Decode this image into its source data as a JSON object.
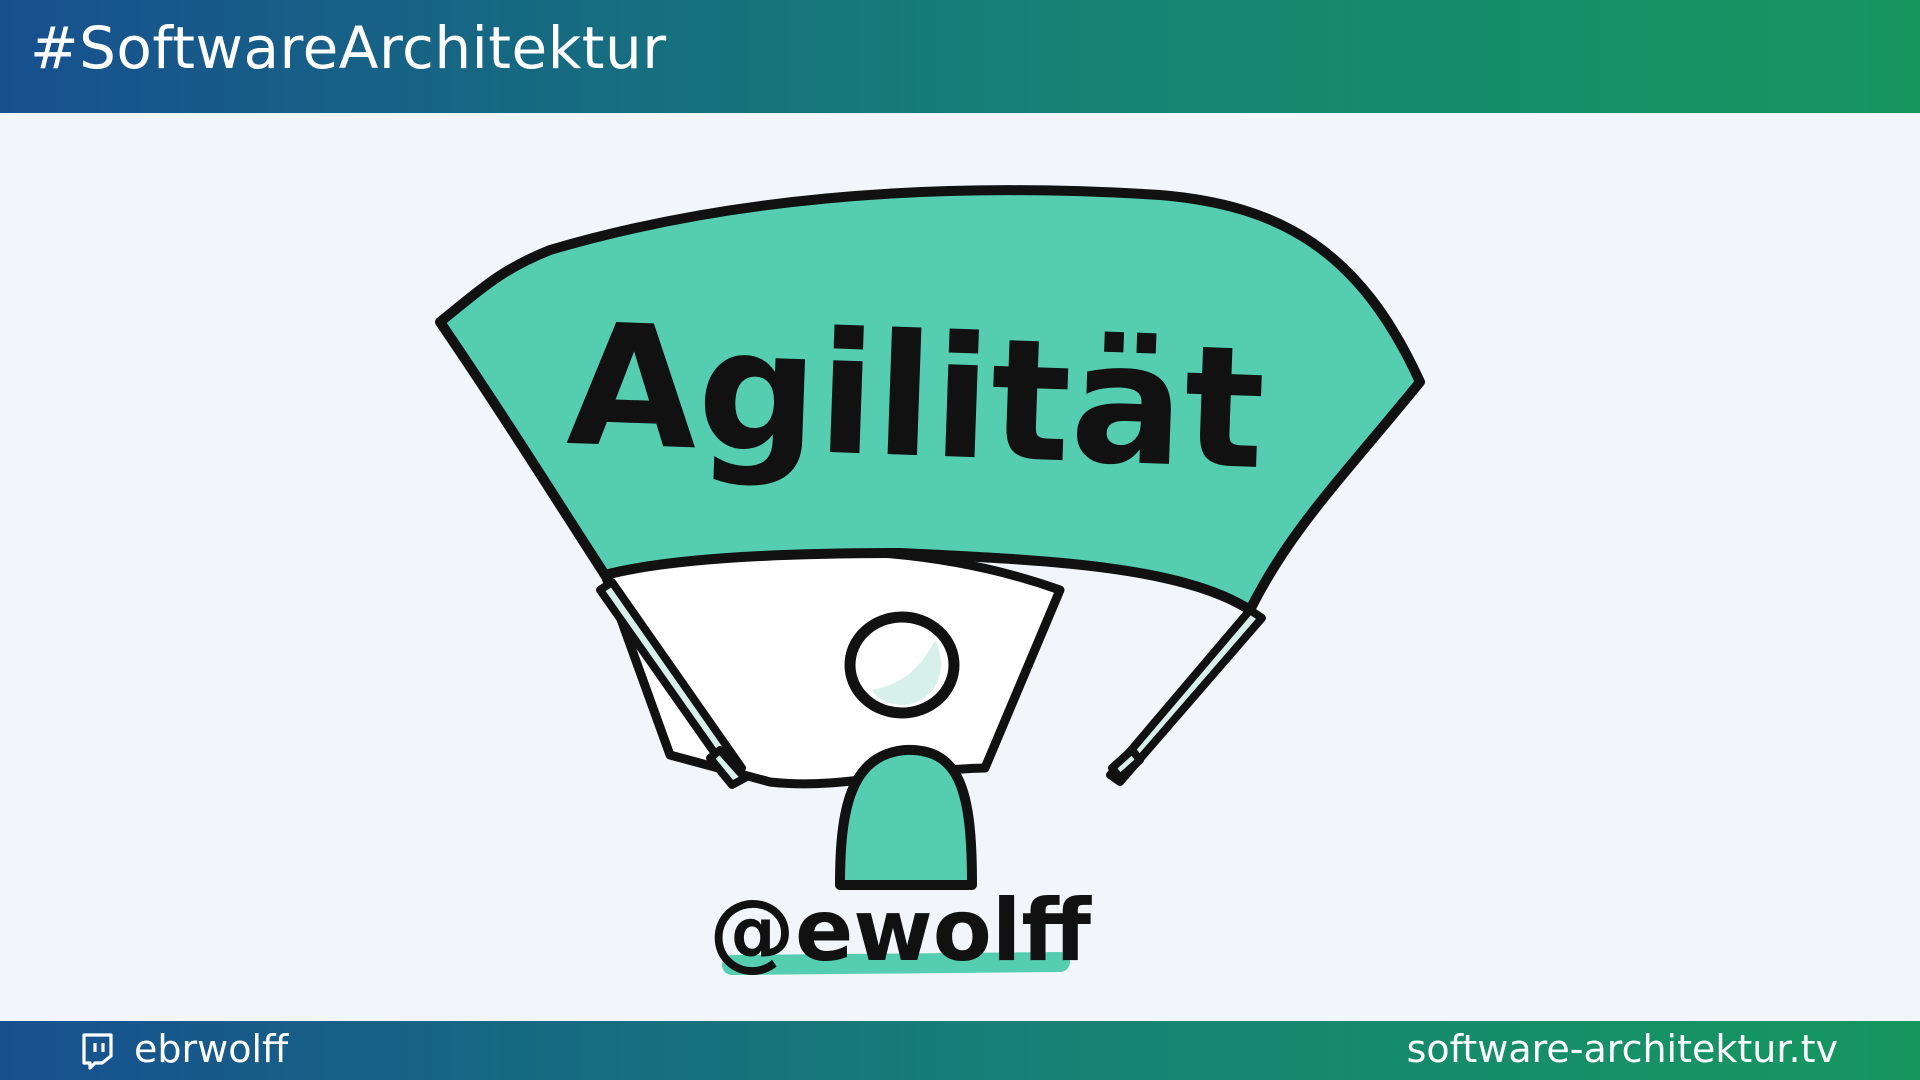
{
  "header": {
    "title": "#SoftwareArchitektur"
  },
  "illustration": {
    "banner_text": "Agilität",
    "signature": "@ewolff",
    "colors": {
      "banner": "#55cdb0",
      "outline": "#111111",
      "inner": "#ffffff",
      "pole": "#d8f0ea"
    }
  },
  "footer": {
    "icon": "twitch-icon",
    "left_text": "ebrwolff",
    "right_text": "software-architektur.tv"
  }
}
